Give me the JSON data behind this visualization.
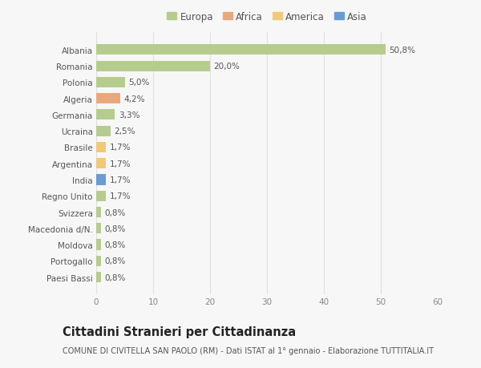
{
  "countries": [
    "Albania",
    "Romania",
    "Polonia",
    "Algeria",
    "Germania",
    "Ucraina",
    "Brasile",
    "Argentina",
    "India",
    "Regno Unito",
    "Svizzera",
    "Macedonia d/N.",
    "Moldova",
    "Portogallo",
    "Paesi Bassi"
  ],
  "values": [
    50.8,
    20.0,
    5.0,
    4.2,
    3.3,
    2.5,
    1.7,
    1.7,
    1.7,
    1.7,
    0.8,
    0.8,
    0.8,
    0.8,
    0.8
  ],
  "labels": [
    "50,8%",
    "20,0%",
    "5,0%",
    "4,2%",
    "3,3%",
    "2,5%",
    "1,7%",
    "1,7%",
    "1,7%",
    "1,7%",
    "0,8%",
    "0,8%",
    "0,8%",
    "0,8%",
    "0,8%"
  ],
  "colors": [
    "#b5cc8e",
    "#b5cc8e",
    "#b5cc8e",
    "#e8a87c",
    "#b5cc8e",
    "#b5cc8e",
    "#f0c97a",
    "#f0c97a",
    "#6b9bd2",
    "#b5cc8e",
    "#b5cc8e",
    "#b5cc8e",
    "#b5cc8e",
    "#b5cc8e",
    "#b5cc8e"
  ],
  "legend_labels": [
    "Europa",
    "Africa",
    "America",
    "Asia"
  ],
  "legend_colors": [
    "#b5cc8e",
    "#e8a87c",
    "#f0c97a",
    "#6b9bd2"
  ],
  "xlim": [
    0,
    60
  ],
  "xticks": [
    0,
    10,
    20,
    30,
    40,
    50,
    60
  ],
  "title": "Cittadini Stranieri per Cittadinanza",
  "subtitle": "COMUNE DI CIVITELLA SAN PAOLO (RM) - Dati ISTAT al 1° gennaio - Elaborazione TUTTITALIA.IT",
  "bg_color": "#f7f7f7",
  "grid_color": "#e0e0e0",
  "label_fontsize": 7.5,
  "tick_fontsize": 7.5,
  "title_fontsize": 10.5,
  "subtitle_fontsize": 7.0,
  "legend_fontsize": 8.5,
  "bar_height": 0.65
}
